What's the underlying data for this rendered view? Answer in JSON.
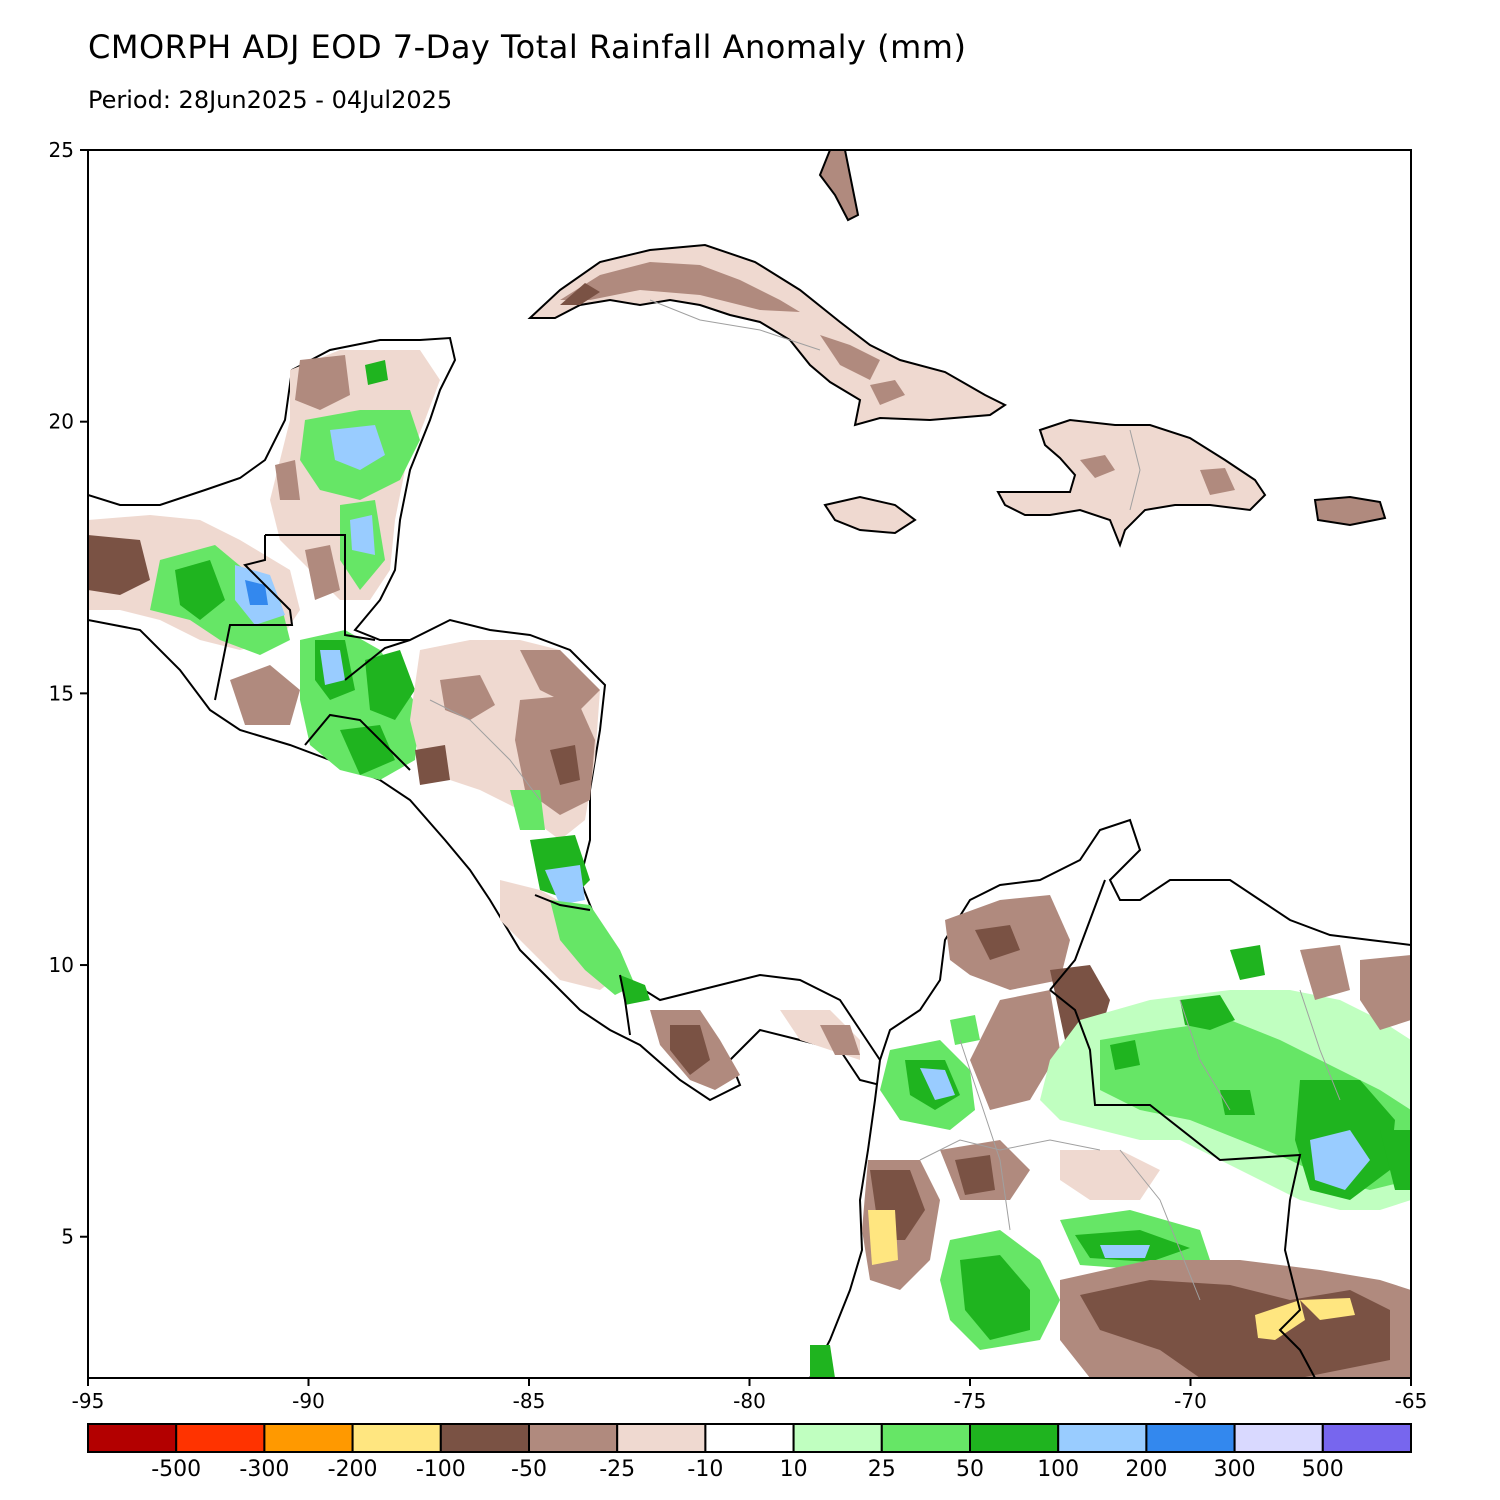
{
  "header": {
    "title": "CMORPH ADJ EOD 7-Day Total Rainfall Anomaly (mm)",
    "period": "Period: 28Jun2025 - 04Jul2025"
  },
  "map": {
    "lon_range": [
      -95,
      -65
    ],
    "lat_range": [
      2.4,
      25
    ],
    "x_ticks": [
      "-95",
      "-90",
      "-85",
      "-80",
      "-75",
      "-70",
      "-65"
    ],
    "y_ticks": [
      "25",
      "20",
      "15",
      "10",
      "5"
    ]
  },
  "colorbar": {
    "colors": [
      "#b30000",
      "#ff3300",
      "#ff9900",
      "#ffe680",
      "#7a5244",
      "#b08a7e",
      "#efd9d0",
      "#ffffff",
      "#c0ffc0",
      "#66e666",
      "#1fb41f",
      "#99ccff",
      "#3388ee",
      "#d9d9ff",
      "#7766ee"
    ],
    "labels": [
      "-500",
      "-300",
      "-200",
      "-100",
      "-50",
      "-25",
      "-10",
      "10",
      "25",
      "50",
      "100",
      "200",
      "300",
      "500"
    ]
  }
}
